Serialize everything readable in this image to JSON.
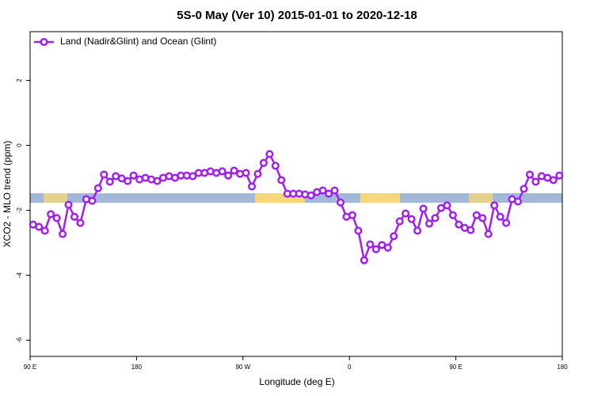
{
  "chart_data": {
    "type": "line",
    "title": "5S-0 May (Ver 10)   2015-01-01 to 2020-12-18",
    "x_label": "Longitude (deg E)",
    "y_label": "XCO2 - MLO trend (ppm)",
    "xlim": [
      90,
      540
    ],
    "xticks": [
      {
        "value": 90,
        "label": "90 E"
      },
      {
        "value": 180,
        "label": "180"
      },
      {
        "value": 270,
        "label": "90 W"
      },
      {
        "value": 360,
        "label": "0"
      },
      {
        "value": 450,
        "label": "90 E"
      },
      {
        "value": 540,
        "label": "180"
      }
    ],
    "ylim": [
      -6.5,
      3.5
    ],
    "yticks": [
      2,
      0,
      -2,
      -4,
      -6
    ],
    "legend": "top-left",
    "x": [
      92.5,
      97.5,
      102.5,
      107.5,
      112.5,
      117.5,
      122.5,
      127.5,
      132.5,
      137.5,
      142.5,
      147.5,
      152.5,
      157.5,
      162.5,
      167.5,
      172.5,
      177.5,
      182.5,
      187.5,
      192.5,
      197.5,
      202.5,
      207.5,
      212.5,
      217.5,
      222.5,
      227.5,
      232.5,
      237.5,
      242.5,
      247.5,
      252.5,
      257.5,
      262.5,
      267.5,
      272.5,
      277.5,
      282.5,
      287.5,
      292.5,
      297.5,
      302.5,
      307.5,
      312.5,
      317.5,
      322.5,
      327.5,
      332.5,
      337.5,
      342.5,
      347.5,
      352.5,
      357.5,
      362.5,
      367.5,
      372.5,
      377.5,
      382.5,
      387.5,
      392.5,
      397.5,
      402.5,
      407.5,
      412.5,
      417.5,
      422.5,
      427.5,
      432.5,
      437.5,
      442.5,
      447.5,
      452.5,
      457.5,
      462.5,
      467.5,
      472.5,
      477.5,
      482.5,
      487.5,
      492.5,
      497.5,
      502.5,
      507.5,
      512.5,
      517.5,
      522.5,
      527.5,
      532.5,
      537.5
    ],
    "series": [
      {
        "name": "Land (Nadir&Glint) and Ocean (Glint)",
        "color": "#a020f0",
        "values": [
          -2.44,
          -2.51,
          -2.63,
          -2.12,
          -2.24,
          -2.73,
          -1.83,
          -2.2,
          -2.39,
          -1.66,
          -1.71,
          -1.32,
          -0.9,
          -1.12,
          -0.95,
          -1.02,
          -1.1,
          -0.93,
          -1.05,
          -1.0,
          -1.05,
          -1.1,
          -1.0,
          -0.95,
          -1.0,
          -0.93,
          -0.93,
          -0.95,
          -0.85,
          -0.85,
          -0.8,
          -0.85,
          -0.8,
          -0.93,
          -0.78,
          -0.88,
          -0.85,
          -1.27,
          -0.88,
          -0.54,
          -0.27,
          -0.63,
          -1.07,
          -1.49,
          -1.49,
          -1.49,
          -1.51,
          -1.54,
          -1.44,
          -1.39,
          -1.49,
          -1.39,
          -1.76,
          -2.2,
          -2.15,
          -2.63,
          -3.54,
          -3.05,
          -3.2,
          -3.07,
          -3.15,
          -2.8,
          -2.34,
          -2.1,
          -2.27,
          -2.63,
          -1.95,
          -2.41,
          -2.24,
          -1.93,
          -1.85,
          -2.15,
          -2.44,
          -2.54,
          -2.61,
          -2.15,
          -2.24,
          -2.73,
          -1.85,
          -2.2,
          -2.39,
          -1.66,
          -1.73,
          -1.34,
          -0.9,
          -1.12,
          -0.95,
          -1.0,
          -1.07,
          -0.93
        ]
      }
    ]
  }
}
